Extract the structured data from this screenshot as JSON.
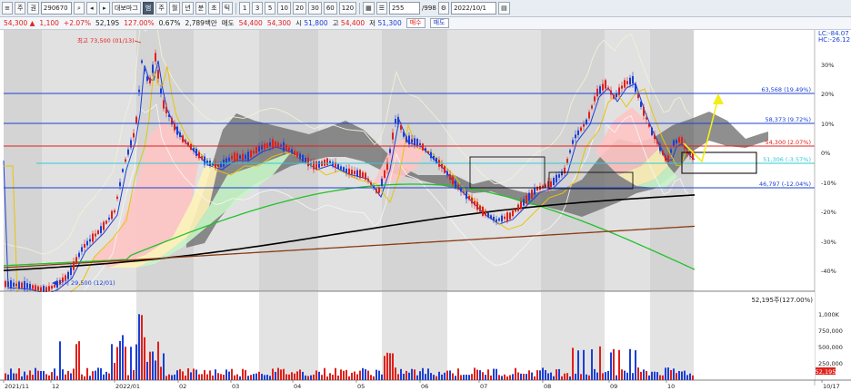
{
  "toolbar": {
    "btn_ju": "주",
    "btn_gwon": "권",
    "code": "290670",
    "symbol_btn": "대보마그",
    "btn_zoom": "범",
    "periods": [
      "주",
      "월",
      "년",
      "분",
      "초",
      "틱"
    ],
    "minutes": [
      "1",
      "3",
      "5",
      "10",
      "20",
      "30",
      "60",
      "120"
    ],
    "count": "255",
    "total": "/998",
    "date": "2022/10/1"
  },
  "quote": {
    "price": "54,300",
    "change_arrow": "▲",
    "change": "1,100",
    "change_pct": "+2.07%",
    "volume": "52,195",
    "volume_ratio": "127.00%",
    "turnover": "0.67%",
    "amount": "2,789백만",
    "sell_label": "매도",
    "sell_price": "54,400",
    "buy_price": "54,300",
    "open_label": "시",
    "open": "51,800",
    "high_label": "고",
    "high": "54,400",
    "low_label": "저",
    "low": "51,300",
    "btn_buy": "매수",
    "btn_sell": "매도"
  },
  "chart": {
    "right_axis_pct": [
      "30%",
      "20%",
      "10%",
      "0%",
      "-10%",
      "-20%",
      "-30%",
      "-40%"
    ],
    "corner_labels": [
      "LC:-84.07",
      "HC:-26.12"
    ],
    "fib_labels": [
      "63,568 (19.49%)",
      "58,373 (9.72%)",
      "54,300 (2.07%)",
      "46,797 (-12.04%)"
    ],
    "price_tag": "54,300",
    "price_tag_pct": "2.07%",
    "cyan_label": "51,306 (-3.57%)",
    "high_marker": "최고 73,500 (01/13)",
    "low_marker": "최저 29,500 (12/01)",
    "vol_header": "52,195주(127.00%)",
    "vol_axis": [
      "1,000K",
      "750,000",
      "500,000",
      "250,000"
    ],
    "vol_tag": "52,195",
    "x_labels": [
      "2021/11",
      "12",
      "2022/01",
      "02",
      "03",
      "04",
      "05",
      "06",
      "07",
      "08",
      "09",
      "10",
      "10/17"
    ]
  },
  "colors": {
    "up": "#e0201b",
    "down": "#1b3fd6",
    "shade": "#b4b4b4",
    "cloud": "#6a6a6a",
    "ma_black": "#000000",
    "ma_brown": "#8b3a14",
    "ma_green": "#22c22a",
    "ma_yellow": "#e8c40a",
    "cyan": "#33c9d6",
    "arrow": "#f2ee1a"
  }
}
